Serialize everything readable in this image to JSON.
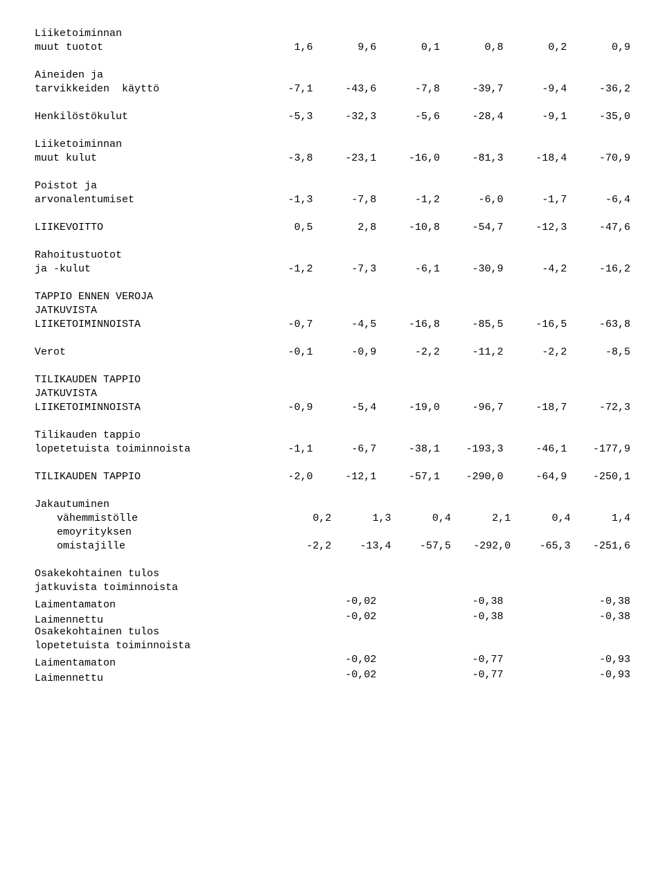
{
  "rows": [
    {
      "type": "label",
      "text": "Liiketoiminnan"
    },
    {
      "type": "data",
      "label": "muut tuotot",
      "v": [
        "1,6",
        "9,6",
        "0,1",
        "0,8",
        "0,2",
        "0,9"
      ]
    },
    {
      "type": "spacer"
    },
    {
      "type": "label",
      "text": "Aineiden ja"
    },
    {
      "type": "data",
      "label": "tarvikkeiden  käyttö",
      "v": [
        "-7,1",
        "-43,6",
        "-7,8",
        "-39,7",
        "-9,4",
        "-36,2"
      ]
    },
    {
      "type": "spacer"
    },
    {
      "type": "data",
      "label": "Henkilöstökulut",
      "v": [
        "-5,3",
        "-32,3",
        "-5,6",
        "-28,4",
        "-9,1",
        "-35,0"
      ]
    },
    {
      "type": "spacer"
    },
    {
      "type": "label",
      "text": "Liiketoiminnan"
    },
    {
      "type": "data",
      "label": "muut kulut",
      "v": [
        "-3,8",
        "-23,1",
        "-16,0",
        "-81,3",
        "-18,4",
        "-70,9"
      ]
    },
    {
      "type": "spacer"
    },
    {
      "type": "label",
      "text": "Poistot ja"
    },
    {
      "type": "data",
      "label": "arvonalentumiset",
      "v": [
        "-1,3",
        "-7,8",
        "-1,2",
        "-6,0",
        "-1,7",
        "-6,4"
      ]
    },
    {
      "type": "spacer"
    },
    {
      "type": "data",
      "label": "LIIKEVOITTO",
      "v": [
        "0,5",
        "2,8",
        "-10,8",
        "-54,7",
        "-12,3",
        "-47,6"
      ]
    },
    {
      "type": "spacer"
    },
    {
      "type": "label",
      "text": "Rahoitustuotot"
    },
    {
      "type": "data",
      "label": "ja -kulut",
      "v": [
        "-1,2",
        "-7,3",
        "-6,1",
        "-30,9",
        "-4,2",
        "-16,2"
      ]
    },
    {
      "type": "spacer"
    },
    {
      "type": "label",
      "text": "TAPPIO ENNEN VEROJA"
    },
    {
      "type": "label",
      "text": "JATKUVISTA"
    },
    {
      "type": "data",
      "label": "LIIKETOIMINNOISTA",
      "v": [
        "-0,7",
        "-4,5",
        "-16,8",
        "-85,5",
        "-16,5",
        "-63,8"
      ]
    },
    {
      "type": "spacer"
    },
    {
      "type": "data",
      "label": "Verot",
      "v": [
        "-0,1",
        "-0,9",
        "-2,2",
        "-11,2",
        "-2,2",
        "-8,5"
      ]
    },
    {
      "type": "spacer"
    },
    {
      "type": "label",
      "text": "TILIKAUDEN TAPPIO"
    },
    {
      "type": "label",
      "text": "JATKUVISTA"
    },
    {
      "type": "data",
      "label": "LIIKETOIMINNOISTA",
      "v": [
        "-0,9",
        "-5,4",
        "-19,0",
        "-96,7",
        "-18,7",
        "-72,3"
      ]
    },
    {
      "type": "spacer"
    },
    {
      "type": "label",
      "text": "Tilikauden tappio"
    },
    {
      "type": "data",
      "label": "lopetetuista toiminnoista",
      "v": [
        "-1,1",
        "-6,7",
        "-38,1",
        "-193,3",
        "-46,1",
        "-177,9"
      ]
    },
    {
      "type": "spacer"
    },
    {
      "type": "data",
      "label": "TILIKAUDEN TAPPIO",
      "v": [
        "-2,0",
        "-12,1",
        "-57,1",
        "-290,0",
        "-64,9",
        "-250,1"
      ]
    },
    {
      "type": "spacer"
    },
    {
      "type": "label",
      "text": "Jakautuminen"
    },
    {
      "type": "data",
      "label": "vähemmistölle",
      "indent": true,
      "v": [
        "0,2",
        "1,3",
        "0,4",
        "2,1",
        "0,4",
        "1,4"
      ]
    },
    {
      "type": "label",
      "text": "emoyrityksen",
      "indent": true
    },
    {
      "type": "data",
      "label": "omistajille",
      "indent": true,
      "v": [
        "-2,2",
        "-13,4",
        "-57,5",
        "-292,0",
        "-65,3",
        "-251,6"
      ]
    },
    {
      "type": "spacer"
    },
    {
      "type": "label",
      "text": "Osakekohtainen tulos"
    },
    {
      "type": "label",
      "text": "jatkuvista toiminnoista"
    },
    {
      "type": "eps",
      "label": "Laimentamaton",
      "v": [
        "-0,02",
        "-0,38",
        "-0,38"
      ]
    },
    {
      "type": "eps",
      "label": "Laimennettu",
      "v": [
        "-0,02",
        "-0,38",
        "-0,38"
      ]
    },
    {
      "type": "label",
      "text": "Osakekohtainen tulos"
    },
    {
      "type": "label",
      "text": "lopetetuista toiminnoista"
    },
    {
      "type": "eps",
      "label": "Laimentamaton",
      "v": [
        "-0,02",
        "-0,77",
        "-0,93"
      ]
    },
    {
      "type": "eps",
      "label": "Laimennettu",
      "v": [
        "-0,02",
        "-0,77",
        "-0,93"
      ]
    }
  ]
}
